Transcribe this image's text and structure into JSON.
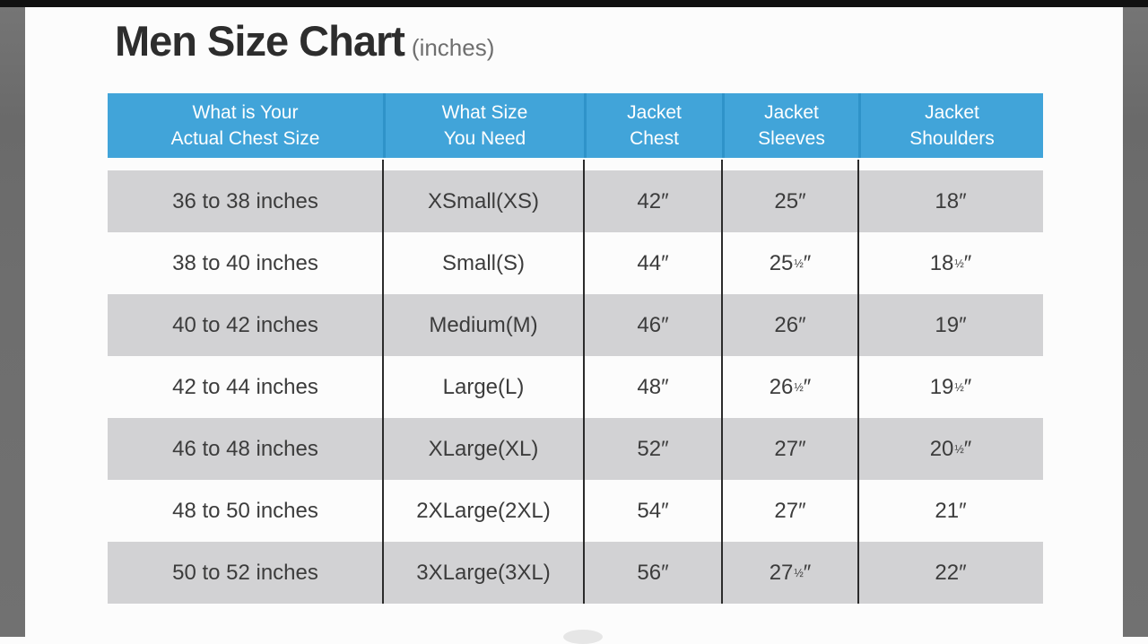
{
  "title": {
    "text": "Men Size Chart",
    "suffix": "(inches)"
  },
  "header": [
    {
      "line1": "What is Your",
      "line2": "Actual Chest Size"
    },
    {
      "line1": "What Size",
      "line2": "You Need"
    },
    {
      "line1": "Jacket",
      "line2": "Chest"
    },
    {
      "line1": "Jacket",
      "line2": "Sleeves"
    },
    {
      "line1": "Jacket",
      "line2": "Shoulders"
    }
  ],
  "chart_data": {
    "type": "table",
    "title": "Men Size Chart (inches)",
    "columns": [
      "What is Your Actual Chest Size",
      "What Size You Need",
      "Jacket Chest",
      "Jacket Sleeves",
      "Jacket Shoulders"
    ],
    "rows": [
      [
        "36 to 38 inches",
        "XSmall(XS)",
        "42″",
        "25″",
        "18″"
      ],
      [
        "38 to 40 inches",
        "Small(S)",
        "44″",
        "25½″",
        "18½″"
      ],
      [
        "40 to 42 inches",
        "Medium(M)",
        "46″",
        "26″",
        "19″"
      ],
      [
        "42 to 44 inches",
        "Large(L)",
        "48″",
        "26½″",
        "19½″"
      ],
      [
        "46 to 48 inches",
        "XLarge(XL)",
        "52″",
        "27″",
        "20½″"
      ],
      [
        "48 to 50 inches",
        "2XLarge(2XL)",
        "54″",
        "27″",
        "21″"
      ],
      [
        "50 to 52 inches",
        "3XLarge(3XL)",
        "56″",
        "27½″",
        "22″"
      ]
    ]
  },
  "colors": {
    "header_bg": "#41a4d9",
    "header_divider": "#2f93c9",
    "row_alt_bg": "#d2d2d4",
    "row_bg": "#fcfcfc",
    "grid_line": "#2b2b2b",
    "header_text": "#ffffff",
    "body_text": "#3c3c3c",
    "side_bar": "#6e6e6e",
    "top_bar": "#111111"
  }
}
